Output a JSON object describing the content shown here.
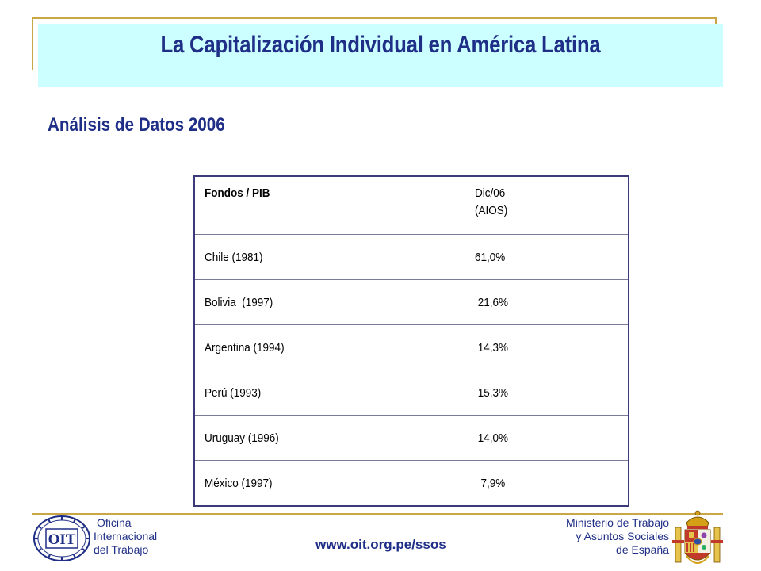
{
  "header": {
    "title": "La Capitalización Individual en América Latina"
  },
  "subtitle": "Análisis de Datos 2006",
  "table": {
    "header_country": "Fondos / PIB",
    "header_value_line1": "Dic/06",
    "header_value_line2": "(AIOS)",
    "rows": [
      {
        "country": "Chile (1981)",
        "value": "61,0%"
      },
      {
        "country": "Bolivia  (1997)",
        "value": " 21,6%"
      },
      {
        "country": "Argentina (1994)",
        "value": " 14,3%"
      },
      {
        "country": "Perú (1993)",
        "value": " 15,3%"
      },
      {
        "country": "Uruguay (1996)",
        "value": " 14,0%"
      },
      {
        "country": "México (1997)",
        "value": "  7,9%"
      }
    ]
  },
  "footer": {
    "oit_line1": "Oficina",
    "oit_line2": "Internacional",
    "oit_line3": "del Trabajo",
    "url": "www.oit.org.pe/ssos",
    "ministry_line1": "Ministerio de Trabajo",
    "ministry_line2": "y Asuntos Sociales",
    "ministry_line3": "de España",
    "logo_text": "OIT"
  },
  "colors": {
    "accent_gold": "#c9a646",
    "title_band": "#ccffff",
    "text_navy": "#1f2e86"
  }
}
